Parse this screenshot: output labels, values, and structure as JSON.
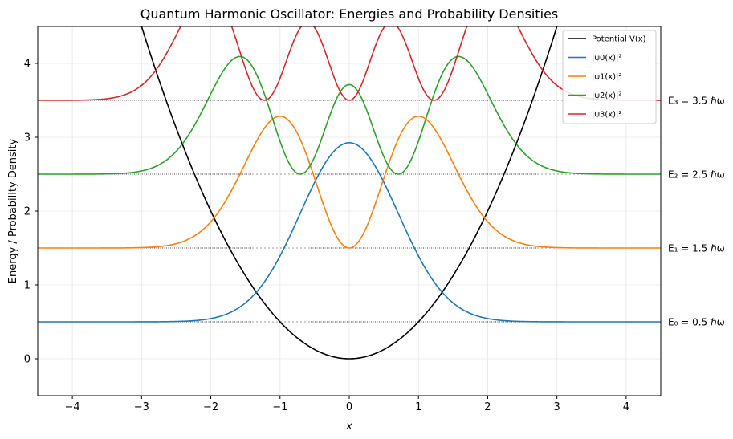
{
  "chart_data": {
    "type": "line",
    "title": "Quantum Harmonic Oscillator: Energies and Probability Densities",
    "xlabel": "x",
    "ylabel": "Energy / Probability Density",
    "xlim": [
      -4.5,
      4.5
    ],
    "ylim": [
      -0.5,
      4.5
    ],
    "grid": true,
    "legend_position": "top-right",
    "xticks": [
      -4,
      -3,
      -2,
      -1,
      0,
      1,
      2,
      3,
      4
    ],
    "xtick_labels": [
      "−4",
      "−3",
      "−2",
      "−1",
      "0",
      "1",
      "2",
      "3",
      "4"
    ],
    "yticks": [
      0,
      1,
      2,
      3,
      4
    ],
    "ytick_labels": [
      "0",
      "1",
      "2",
      "3",
      "4"
    ],
    "potential": {
      "name": "Potential V(x)",
      "formula": "V(x) = x^2 / 2",
      "color": "#000000"
    },
    "density_scale": 4.3,
    "series": [
      {
        "name": "|ψ0(x)|²",
        "n": 0,
        "energy": 0.5,
        "color": "#1f77b4"
      },
      {
        "name": "|ψ1(x)|²",
        "n": 1,
        "energy": 1.5,
        "color": "#ff7f0e"
      },
      {
        "name": "|ψ2(x)|²",
        "n": 2,
        "energy": 2.5,
        "color": "#2ca02c"
      },
      {
        "name": "|ψ3(x)|²",
        "n": 3,
        "energy": 3.5,
        "color": "#d62728"
      }
    ],
    "energy_labels": [
      {
        "text": "E₀ = 0.5 ℏω",
        "energy": 0.5
      },
      {
        "text": "E₁ = 1.5 ℏω",
        "energy": 1.5
      },
      {
        "text": "E₂ = 2.5 ℏω",
        "energy": 2.5
      },
      {
        "text": "E₃ = 3.5 ℏω",
        "energy": 3.5
      }
    ]
  }
}
